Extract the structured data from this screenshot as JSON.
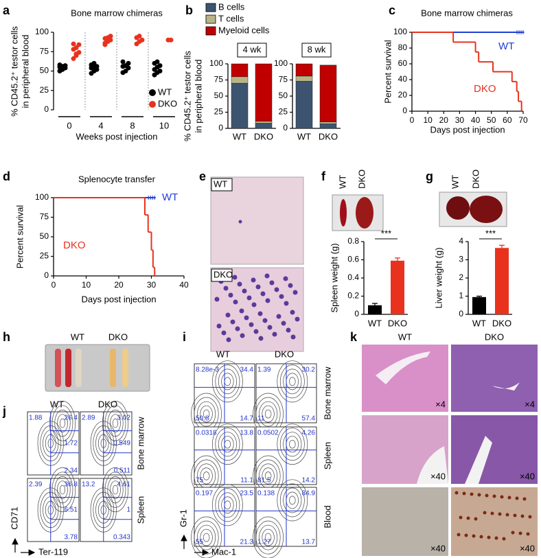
{
  "chart_data": [
    {
      "type": "dot",
      "title": "Bone marrow chimeras",
      "ylabel": [
        "% CD45.2⁺ testor cells",
        "in peripheral blood"
      ],
      "xlabel": "Weeks post injection",
      "categories": [
        "0",
        "4",
        "8",
        "10"
      ],
      "ylim": [
        0,
        100
      ],
      "yticks": [
        0,
        25,
        50,
        75,
        100
      ],
      "legend": "lower right",
      "series": [
        {
          "name": "WT",
          "color": "#000000",
          "values": [
            [
              50,
              53,
              54,
              55,
              56,
              57,
              58,
              52
            ],
            [
              47,
              50,
              52,
              54,
              55,
              56,
              58,
              60
            ],
            [
              48,
              50,
              54,
              56,
              57,
              60,
              62
            ],
            [
              45,
              48,
              50,
              52,
              55,
              57,
              60,
              62
            ]
          ]
        },
        {
          "name": "DKO",
          "color": "#e8321e",
          "values": [
            [
              66,
              70,
              74,
              78,
              80,
              84,
              85,
              72
            ],
            [
              84,
              88,
              90,
              92,
              93,
              95,
              86
            ],
            [
              85,
              88,
              90,
              93,
              95
            ],
            [
              90,
              90
            ]
          ]
        }
      ]
    },
    {
      "type": "stacked_bar",
      "ylabel": [
        "% CD45.2⁺ testor cells",
        "in peripheral blood"
      ],
      "panels": [
        "4 wk",
        "8 wk"
      ],
      "categories": [
        "WT",
        "DKO",
        "WT",
        "DKO"
      ],
      "ylim": [
        0,
        100
      ],
      "yticks": [
        0,
        25,
        50,
        75,
        100
      ],
      "legend": "top",
      "series": [
        {
          "name": "B cells",
          "color": "#3d5470",
          "values": [
            70,
            8,
            73,
            7
          ]
        },
        {
          "name": "T cells",
          "color": "#b8b487",
          "values": [
            10,
            3,
            8,
            3
          ]
        },
        {
          "name": "Myeloid cells",
          "color": "#c00000",
          "values": [
            20,
            89,
            19,
            88
          ]
        }
      ]
    },
    {
      "type": "survival",
      "title": "Bone marrow chimeras",
      "xlabel": "Days post injection",
      "ylabel": "Percent survival",
      "xlim": [
        0,
        70
      ],
      "xticks": [
        0,
        10,
        20,
        30,
        40,
        50,
        60,
        70
      ],
      "ylim": [
        0,
        100
      ],
      "yticks": [
        0,
        20,
        40,
        60,
        80,
        100
      ],
      "series": [
        {
          "name": "WT",
          "color": "#1f3fd6",
          "x": [
            0,
            70
          ],
          "values": [
            100,
            100
          ]
        },
        {
          "name": "DKO",
          "color": "#e8321e",
          "x": [
            0,
            26,
            40,
            42,
            51,
            63,
            66,
            67,
            69
          ],
          "values": [
            100,
            87.5,
            75,
            62.5,
            50,
            37.5,
            25,
            12.5,
            0
          ]
        }
      ]
    },
    {
      "type": "survival",
      "title": "Splenocyte transfer",
      "xlabel": "Days post injection",
      "ylabel": "Percent survival",
      "xlim": [
        0,
        40
      ],
      "xticks": [
        0,
        10,
        20,
        30,
        40
      ],
      "ylim": [
        0,
        100
      ],
      "yticks": [
        0,
        25,
        50,
        75,
        100
      ],
      "series": [
        {
          "name": "WT",
          "color": "#1f3fd6",
          "x": [
            0,
            31
          ],
          "values": [
            100,
            100
          ]
        },
        {
          "name": "DKO",
          "color": "#e8321e",
          "x": [
            0,
            28,
            29,
            30,
            30.5,
            31
          ],
          "values": [
            100,
            78,
            56,
            33,
            11,
            0
          ]
        }
      ]
    },
    {
      "type": "bar",
      "ylabel": "Spleen weight (g)",
      "categories": [
        "WT",
        "DKO"
      ],
      "values": [
        0.1,
        0.59
      ],
      "errors": [
        0.02,
        0.03
      ],
      "colors": [
        "#000000",
        "#e8321e"
      ],
      "ylim": [
        0,
        0.8
      ],
      "yticks": [
        0,
        0.2,
        0.4,
        0.6,
        0.8
      ],
      "annotation": "***"
    },
    {
      "type": "bar",
      "ylabel": "Liver weight (g)",
      "categories": [
        "WT",
        "DKO"
      ],
      "values": [
        0.95,
        3.65
      ],
      "errors": [
        0.05,
        0.15
      ],
      "colors": [
        "#000000",
        "#e8321e"
      ],
      "ylim": [
        0,
        4
      ],
      "yticks": [
        0,
        1,
        2,
        3,
        4
      ],
      "annotation": "***"
    }
  ],
  "panel_labels": [
    "a",
    "b",
    "c",
    "d",
    "e",
    "f",
    "g",
    "h",
    "i",
    "j",
    "k"
  ],
  "panel_e": {
    "images": [
      "WT",
      "DKO"
    ]
  },
  "panel_h": {
    "labels": [
      "WT",
      "DKO"
    ]
  },
  "flow_i": {
    "columns": [
      "WT",
      "DKO"
    ],
    "rows": [
      "Bone marrow",
      "Spleen",
      "Blood"
    ],
    "y_label": "Gr-1",
    "x_label": "Mac-1",
    "quadrants": [
      [
        [
          "8.28e-3",
          "34.4",
          "50.8",
          "14.7"
        ],
        [
          "1.39",
          "30.2",
          "11",
          "57.4"
        ]
      ],
      [
        [
          "0.0318",
          "13.8",
          "75",
          "11.1"
        ],
        [
          "0.0502",
          "4.26",
          "81.5",
          "14.2"
        ]
      ],
      [
        [
          "0.197",
          "23.5",
          "55",
          "21.3"
        ],
        [
          "0.138",
          "84.9",
          "1.27",
          "13.7"
        ]
      ]
    ]
  },
  "flow_j": {
    "columns": [
      "WT",
      "DKO"
    ],
    "rows": [
      "Bone marrow",
      "Spleen"
    ],
    "y_label": "CD71",
    "x_label": "Ter-119",
    "gates": [
      [
        [
          "1.88",
          "26.4",
          "1.72",
          "2.34"
        ],
        [
          "2.89",
          "3.02",
          "0.549",
          "0.511"
        ]
      ],
      [
        [
          "2.39",
          "36.8",
          "6.51",
          "3.78"
        ],
        [
          "13.2",
          "4.61",
          "1",
          "0.343"
        ]
      ]
    ]
  },
  "panel_k": {
    "columns": [
      "WT",
      "DKO"
    ],
    "magnifications": [
      [
        "×4",
        "×4"
      ],
      [
        "×40",
        "×40"
      ],
      [
        "×40",
        "×40"
      ]
    ]
  }
}
